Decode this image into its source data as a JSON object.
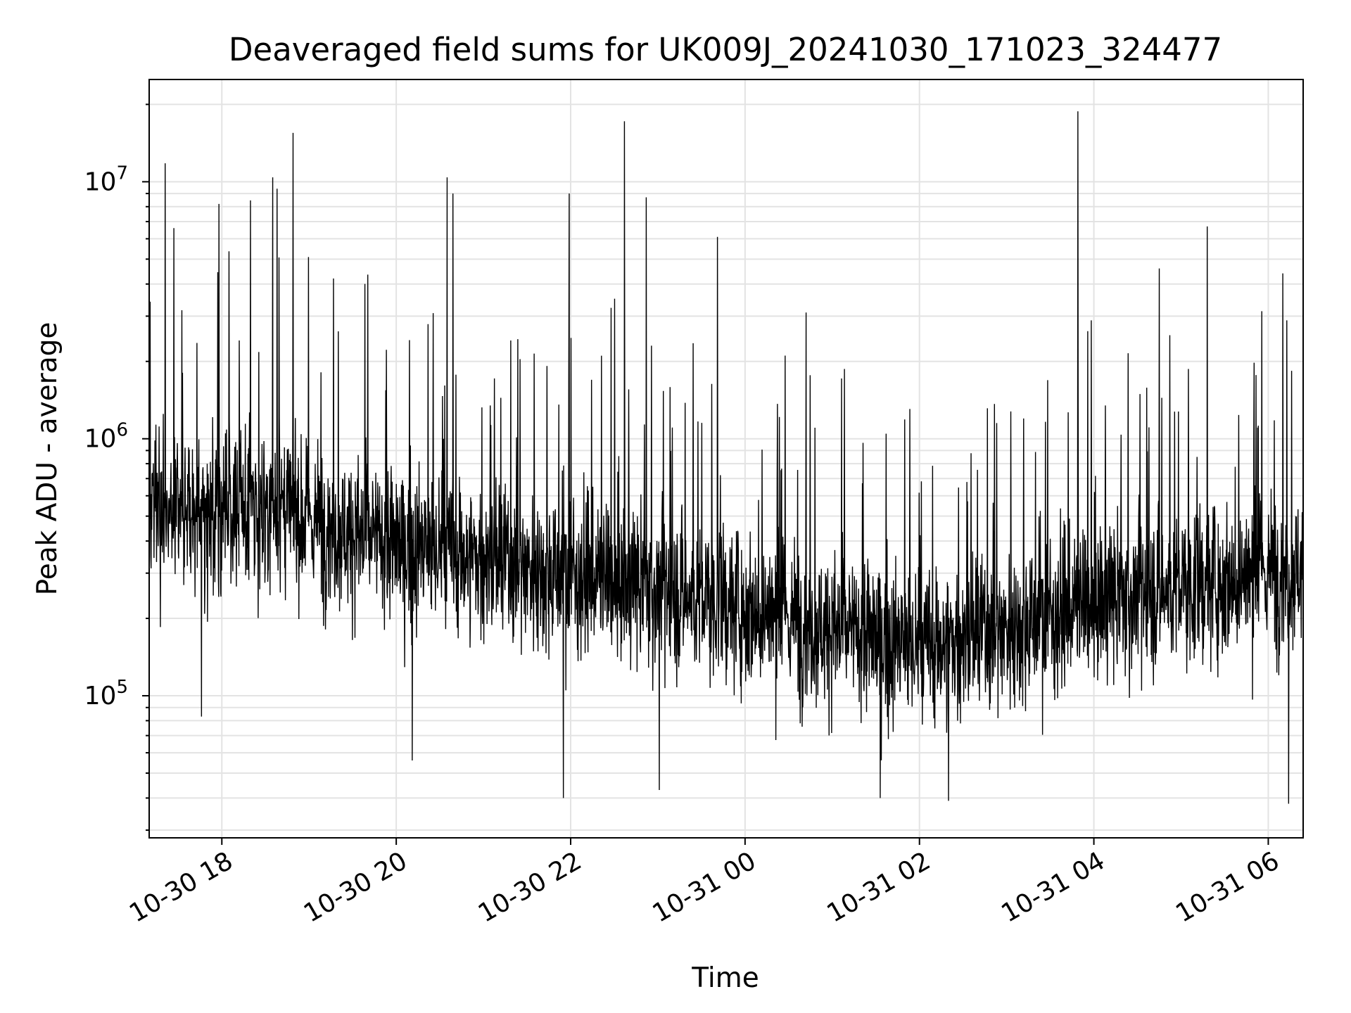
{
  "chart_data": {
    "type": "line",
    "title": "Deaveraged field sums for UK009J_20241030_171023_324477",
    "xlabel": "Time",
    "ylabel": "Peak ADU - average",
    "yscale": "log",
    "xlim": [
      "2024-10-30 17:10",
      "2024-10-31 06:24"
    ],
    "ylim": [
      28000,
      25000000
    ],
    "x_ticks": [
      "10-30 18",
      "10-30 20",
      "10-30 22",
      "10-31 00",
      "10-31 02",
      "10-31 04",
      "10-31 06"
    ],
    "y_ticks": [
      {
        "base": "10",
        "exp": "5",
        "value": 100000
      },
      {
        "base": "10",
        "exp": "6",
        "value": 1000000
      },
      {
        "base": "10",
        "exp": "7",
        "value": 10000000
      }
    ],
    "grid": true,
    "legend": "none",
    "line_color": "#000000",
    "series": [
      {
        "values_note_free": true,
        "x_start": "2024-10-30 17:10",
        "x_end": "2024-10-31 06:24",
        "baseline_trend": [
          {
            "x": "2024-10-30 17:10",
            "y": 500000
          },
          {
            "x": "2024-10-30 18:30",
            "y": 550000
          },
          {
            "x": "2024-10-30 20:00",
            "y": 380000
          },
          {
            "x": "2024-10-30 22:00",
            "y": 300000
          },
          {
            "x": "2024-10-31 00:00",
            "y": 220000
          },
          {
            "x": "2024-10-31 02:00",
            "y": 150000
          },
          {
            "x": "2024-10-31 04:00",
            "y": 230000
          },
          {
            "x": "2024-10-31 06:24",
            "y": 320000
          }
        ],
        "peaks": [
          {
            "x": "2024-10-30 17:21",
            "y": 11800000
          },
          {
            "x": "2024-10-30 17:27",
            "y": 6600000
          },
          {
            "x": "2024-10-30 17:58",
            "y": 8200000
          },
          {
            "x": "2024-10-30 18:35",
            "y": 10400000
          },
          {
            "x": "2024-10-30 18:38",
            "y": 9400000
          },
          {
            "x": "2024-10-30 18:49",
            "y": 15500000
          },
          {
            "x": "2024-10-30 20:35",
            "y": 10400000
          },
          {
            "x": "2024-10-30 20:39",
            "y": 9000000
          },
          {
            "x": "2024-10-30 21:59",
            "y": 9000000
          },
          {
            "x": "2024-10-30 22:37",
            "y": 17200000
          },
          {
            "x": "2024-10-30 22:52",
            "y": 8700000
          },
          {
            "x": "2024-10-30 23:41",
            "y": 6100000
          },
          {
            "x": "2024-10-31 00:42",
            "y": 3100000
          },
          {
            "x": "2024-10-31 03:49",
            "y": 18800000
          },
          {
            "x": "2024-10-31 04:45",
            "y": 4600000
          },
          {
            "x": "2024-10-31 05:18",
            "y": 6700000
          },
          {
            "x": "2024-10-31 06:10",
            "y": 4400000
          }
        ],
        "dips": [
          {
            "x": "2024-10-30 17:46",
            "y": 83000
          },
          {
            "x": "2024-10-30 20:11",
            "y": 56000
          },
          {
            "x": "2024-10-30 21:55",
            "y": 40000
          },
          {
            "x": "2024-10-30 23:01",
            "y": 43000
          },
          {
            "x": "2024-10-31 01:33",
            "y": 40000
          },
          {
            "x": "2024-10-31 02:20",
            "y": 39000
          },
          {
            "x": "2024-10-31 06:14",
            "y": 38000
          }
        ]
      }
    ]
  }
}
